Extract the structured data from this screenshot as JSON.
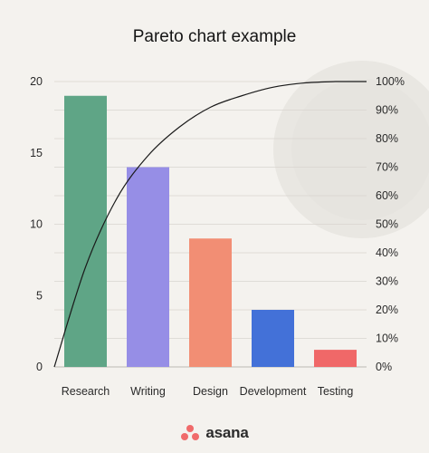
{
  "title": "Pareto chart example",
  "brand": {
    "name": "asana",
    "color": "#f06a6a"
  },
  "chart_data": {
    "type": "bar",
    "title": "Pareto chart example",
    "categories": [
      "Research",
      "Writing",
      "Design",
      "Development",
      "Testing"
    ],
    "values": [
      19,
      14,
      9,
      4,
      1.2
    ],
    "colors": [
      "#5fa586",
      "#968ee6",
      "#f28e74",
      "#4371d8",
      "#f06868"
    ],
    "ylim": [
      0,
      20
    ],
    "y_ticks": [
      "0",
      "5",
      "10",
      "15",
      "20"
    ],
    "y2lim": [
      0,
      100
    ],
    "y2_ticks": [
      "0%",
      "10%",
      "20%",
      "30%",
      "40%",
      "50%",
      "60%",
      "70%",
      "80%",
      "90%",
      "100%"
    ],
    "cumulative_line": {
      "type": "line",
      "x": [
        0,
        0.5,
        1,
        1.5,
        2,
        2.5,
        3,
        3.5,
        4,
        4.5
      ],
      "values": [
        0,
        35,
        59,
        74,
        84,
        91,
        95,
        98,
        99.5,
        100
      ]
    },
    "grid": true,
    "xlabel": "",
    "ylabel": ""
  }
}
